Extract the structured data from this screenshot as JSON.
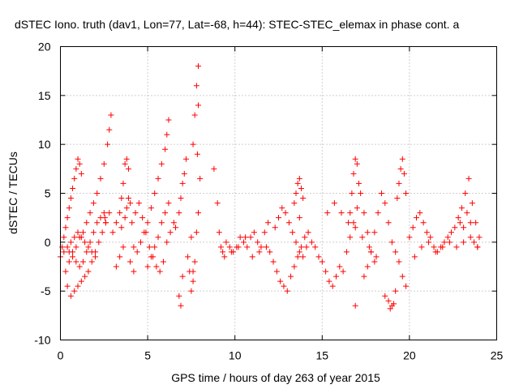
{
  "chart_data": {
    "type": "scatter",
    "title": "dSTEC Iono. truth (dav1, Lon=77, Lat=-68, h=44): STEC-STEC_elemax in phase cont. a",
    "xlabel": "GPS time / hours of day 263 of year 2015",
    "ylabel": "dSTEC  / TECUs",
    "xlim": [
      0,
      25
    ],
    "ylim": [
      -10,
      20
    ],
    "xticks": [
      0,
      5,
      10,
      15,
      20,
      25
    ],
    "yticks": [
      -10,
      -5,
      0,
      5,
      10,
      15,
      20
    ],
    "grid": true,
    "marker": "plus",
    "color": "#ff0000",
    "series": [
      {
        "x": [
          0.0,
          0.1,
          0.2,
          0.3,
          0.4,
          0.5,
          0.6,
          0.7,
          0.8,
          0.9,
          1.0,
          1.1,
          1.2,
          0.3,
          0.5,
          0.7,
          0.9,
          1.1,
          1.3,
          1.5,
          1.7,
          1.9,
          2.1,
          2.3,
          2.5,
          2.7,
          2.8,
          2.9,
          0.4,
          0.6,
          0.8,
          1.0,
          1.2,
          1.4,
          1.6,
          1.8,
          2.0,
          2.2,
          2.4,
          2.6,
          2.8,
          0.5,
          0.7,
          0.9,
          1.1,
          1.3,
          1.5,
          1.7,
          1.9,
          2.1,
          2.3,
          2.5,
          2.55,
          2.6,
          0.2,
          0.4,
          0.6,
          0.8,
          1.0,
          1.2,
          1.4,
          1.6,
          1.8,
          2.0,
          3.0,
          3.2,
          3.4,
          3.5,
          3.6,
          3.7,
          3.8,
          3.9,
          3.6,
          3.4,
          3.2,
          3.5,
          3.7,
          3.8,
          3.9,
          4.0,
          4.1,
          4.2,
          4.0,
          4.2,
          4.4,
          4.6,
          4.8,
          5.0,
          5.2,
          5.4,
          5.6,
          5.8,
          6.0,
          6.1,
          6.2,
          4.3,
          4.5,
          4.7,
          4.9,
          5.1,
          5.3,
          5.5,
          5.7,
          5.9,
          6.1,
          6.3,
          6.5,
          5.0,
          5.2,
          5.4,
          5.6,
          5.8,
          6.0,
          6.2,
          6.6,
          6.8,
          6.9,
          7.0,
          7.1,
          7.2,
          6.8,
          6.9,
          7.0,
          7.3,
          7.4,
          7.5,
          7.6,
          7.7,
          7.8,
          7.9,
          8.0,
          7.6,
          7.7,
          7.8,
          7.9,
          7.9,
          7.85,
          7.5,
          7.6,
          8.8,
          9.0,
          9.1,
          9.2,
          9.3,
          9.5,
          9.7,
          9.9,
          10.1,
          10.3,
          10.5,
          10.7,
          10.9,
          11.1,
          11.3,
          11.5,
          11.7,
          11.9,
          9.4,
          9.8,
          10.2,
          10.6,
          11.0,
          11.4,
          11.8,
          12.0,
          12.2,
          12.4,
          12.6,
          12.8,
          13.0,
          13.2,
          13.4,
          13.6,
          13.8,
          14.0,
          14.2,
          14.4,
          14.6,
          14.8,
          12.3,
          12.5,
          12.7,
          12.9,
          13.1,
          13.3,
          13.5,
          13.7,
          13.9,
          14.1,
          13.4,
          13.5,
          13.6,
          13.7,
          13.8,
          13.9,
          13.7,
          15.0,
          15.2,
          15.4,
          15.6,
          15.8,
          16.0,
          16.2,
          16.4,
          16.6,
          16.8,
          17.0,
          17.2,
          17.4,
          17.6,
          17.8,
          18.0,
          15.3,
          15.7,
          16.1,
          16.5,
          16.9,
          17.3,
          17.7,
          18.1,
          16.6,
          16.7,
          16.8,
          16.9,
          17.0,
          17.1,
          16.9,
          17.4,
          17.6,
          17.8,
          18.0,
          18.2,
          18.4,
          18.6,
          18.8,
          19.0,
          19.2,
          19.4,
          19.6,
          19.8,
          18.6,
          18.8,
          19.0,
          19.1,
          19.2,
          18.9,
          19.3,
          19.4,
          19.5,
          19.6,
          19.7,
          19.8,
          20.0,
          20.2,
          20.4,
          20.6,
          20.8,
          21.0,
          21.2,
          21.4,
          21.6,
          21.8,
          22.0,
          22.2,
          22.4,
          22.6,
          22.8,
          23.0,
          23.2,
          23.4,
          23.6,
          23.8,
          24.0,
          20.3,
          20.7,
          21.1,
          21.5,
          21.9,
          22.3,
          22.7,
          23.1,
          23.5,
          23.9,
          22.9,
          23.1,
          23.3,
          23.5,
          23.7,
          23.9
        ],
        "y": [
          -1.5,
          -0.5,
          0.5,
          1.5,
          2.5,
          3.5,
          4.5,
          5.5,
          6.5,
          7.5,
          8.5,
          8.0,
          7.0,
          -3.0,
          -2.0,
          -1.0,
          -0.5,
          0.5,
          1.0,
          2.0,
          3.0,
          4.0,
          5.0,
          6.5,
          8.0,
          10.0,
          11.5,
          13.0,
          -4.5,
          -5.5,
          -5.0,
          -4.5,
          -4.0,
          -3.5,
          -3.0,
          -2.0,
          -1.0,
          0.0,
          1.0,
          2.0,
          3.0,
          -1.0,
          -1.5,
          -2.0,
          -2.5,
          -2.0,
          -1.0,
          0.0,
          1.0,
          2.0,
          2.5,
          3.0,
          2.5,
          2.0,
          -1.0,
          -0.5,
          0.0,
          0.5,
          1.0,
          0.5,
          0.0,
          -0.5,
          -1.0,
          -1.5,
          1.0,
          2.0,
          3.0,
          4.5,
          6.0,
          8.0,
          8.5,
          7.5,
          -0.5,
          -1.5,
          -2.5,
          1.5,
          2.5,
          3.5,
          4.5,
          4.0,
          2.0,
          -0.5,
          -2.0,
          -3.0,
          -1.0,
          0.0,
          1.0,
          2.0,
          3.5,
          5.0,
          6.5,
          8.0,
          9.5,
          11.0,
          12.5,
          3.0,
          4.0,
          2.5,
          1.0,
          -0.5,
          -1.5,
          -2.5,
          -3.0,
          -2.0,
          0.0,
          1.0,
          2.0,
          -2.5,
          -1.5,
          -0.5,
          0.5,
          2.0,
          3.0,
          4.0,
          1.5,
          3.0,
          4.5,
          6.0,
          7.0,
          8.5,
          -5.5,
          -6.5,
          -3.5,
          -1.5,
          -3.0,
          -5.0,
          -4.0,
          -2.0,
          1.0,
          3.0,
          6.5,
          10.0,
          13.0,
          16.0,
          18.0,
          14.0,
          9.0,
          0.5,
          -3.0,
          7.5,
          4.0,
          1.0,
          -0.5,
          -1.0,
          0.0,
          -0.5,
          -1.0,
          -0.5,
          0.5,
          0.0,
          -0.5,
          0.5,
          1.0,
          0.0,
          -0.5,
          1.0,
          2.0,
          -1.5,
          -1.0,
          -0.5,
          0.5,
          -1.5,
          -1.0,
          -0.5,
          -1.0,
          -2.0,
          -3.0,
          -4.0,
          -4.5,
          -5.0,
          -3.5,
          -2.5,
          -1.5,
          -0.5,
          0.5,
          1.0,
          0.0,
          -0.5,
          -1.5,
          1.5,
          2.5,
          3.5,
          3.0,
          2.0,
          1.0,
          0.0,
          -1.0,
          -1.5,
          -0.5,
          4.0,
          5.0,
          6.0,
          6.5,
          5.5,
          4.5,
          2.5,
          -2.0,
          -3.0,
          -4.0,
          -4.5,
          -3.5,
          -2.5,
          -3.0,
          -1.0,
          0.5,
          2.0,
          3.5,
          5.0,
          3.0,
          1.0,
          -1.0,
          -2.0,
          3.0,
          4.0,
          3.0,
          2.0,
          1.5,
          0.5,
          -0.5,
          -1.5,
          3.0,
          5.0,
          7.0,
          8.5,
          8.0,
          6.0,
          -6.5,
          -3.5,
          -2.5,
          -1.0,
          1.0,
          3.0,
          5.0,
          4.0,
          2.0,
          0.0,
          -1.0,
          -2.0,
          -3.5,
          -4.5,
          -5.5,
          -6.0,
          -6.5,
          -6.3,
          -5.0,
          -6.8,
          4.5,
          6.0,
          7.5,
          8.5,
          7.0,
          5.0,
          0.5,
          1.5,
          2.5,
          3.0,
          2.0,
          1.0,
          0.5,
          -0.5,
          -1.0,
          -0.5,
          0.0,
          0.5,
          1.0,
          1.5,
          2.5,
          3.5,
          5.0,
          6.5,
          4.0,
          2.0,
          0.5,
          -1.5,
          -0.5,
          0.0,
          -1.0,
          -0.5,
          0.0,
          -0.5,
          0.0,
          0.5,
          -0.5,
          2.0,
          1.5,
          3.0,
          2.0,
          0.0,
          -0.5
        ]
      }
    ]
  }
}
